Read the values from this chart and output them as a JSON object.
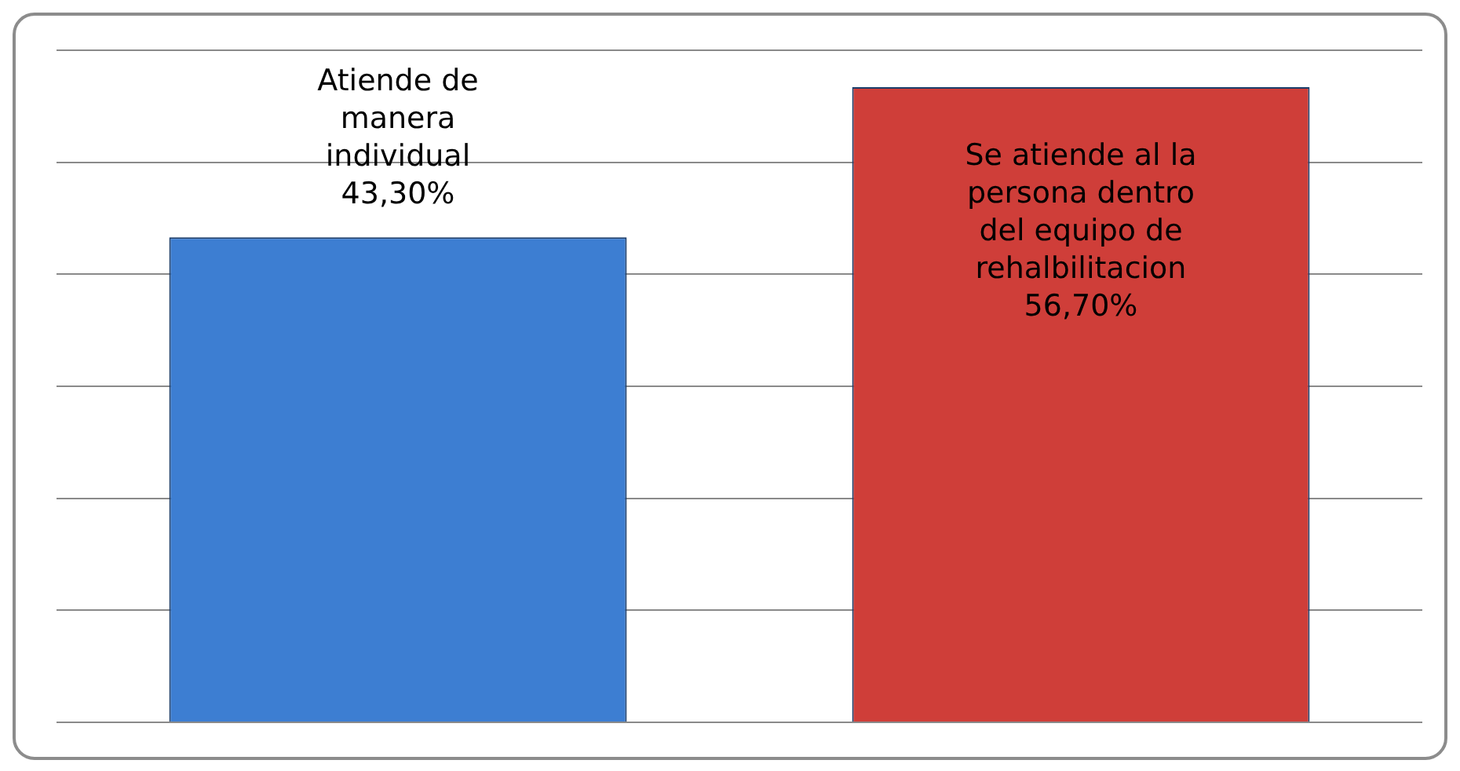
{
  "chart_data": {
    "type": "bar",
    "categories": [
      "Atiende de manera individual",
      "Se atiende al la persona dentro del equipo de rehalbilitacion"
    ],
    "values": [
      43.3,
      56.7
    ],
    "colors": [
      "#3d7ed2",
      "#cf3e39"
    ],
    "value_labels": [
      "43,30%",
      "56,70%"
    ],
    "ylim": [
      0,
      60
    ],
    "yticks": [
      {
        "value": 0,
        "label": null
      },
      {
        "value": 10,
        "label": null
      },
      {
        "value": 20,
        "label": null
      },
      {
        "value": 30,
        "label": null
      },
      {
        "value": 40,
        "label": null
      },
      {
        "value": 50,
        "label": null
      },
      {
        "value": 60,
        "label": null
      }
    ],
    "grid": "y",
    "tick_labels": false,
    "legend": false
  }
}
